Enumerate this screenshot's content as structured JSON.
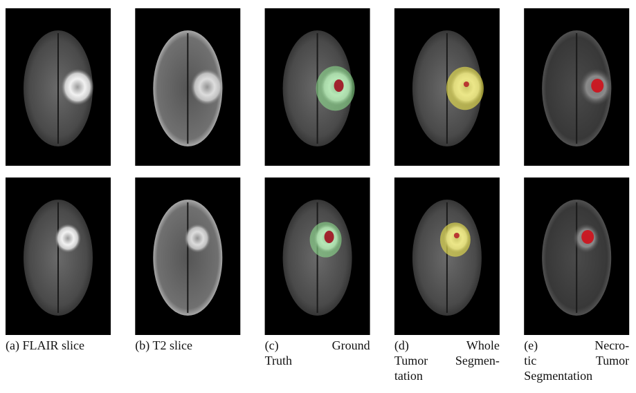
{
  "figure": {
    "panels": [
      {
        "caption": [
          "(a) FLAIR slice"
        ]
      },
      {
        "caption": [
          "(b) T2 slice"
        ]
      },
      {
        "caption": [
          "(c) Ground",
          "Truth"
        ]
      },
      {
        "caption": [
          "(d) Whole",
          "Tumor Segmen-",
          "tation"
        ]
      },
      {
        "caption": [
          "(e) Necro-",
          "tic Tumor",
          "Segmentation"
        ]
      }
    ]
  }
}
